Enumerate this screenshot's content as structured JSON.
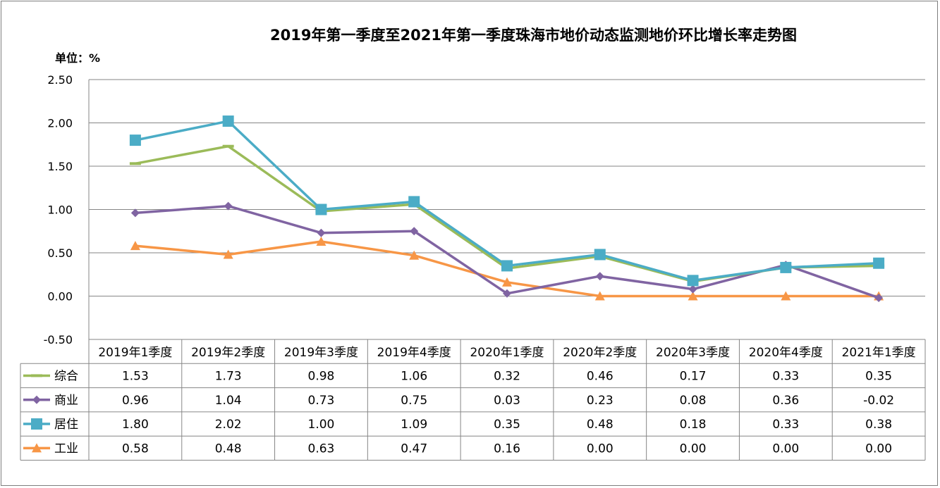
{
  "chart_data": {
    "type": "line",
    "title": "2019年第一季度至2021年第一季度珠海市地价动态监测地价环比增长率走势图",
    "unit_label": "单位：%",
    "ylim": [
      -0.5,
      2.5
    ],
    "yticks": [
      "2.50",
      "2.00",
      "1.50",
      "1.00",
      "0.50",
      "0.00",
      "-0.50"
    ],
    "ytick_values": [
      2.5,
      2.0,
      1.5,
      1.0,
      0.5,
      0.0,
      -0.5
    ],
    "grid": true,
    "legend": "data-table",
    "categories": [
      "2019年1季度",
      "2019年2季度",
      "2019年3季度",
      "2019年4季度",
      "2020年1季度",
      "2020年2季度",
      "2020年3季度",
      "2020年4季度",
      "2021年1季度"
    ],
    "series": [
      {
        "name": "综合",
        "color": "#9bbb59",
        "marker": "dash",
        "values": [
          1.53,
          1.73,
          0.98,
          1.06,
          0.32,
          0.46,
          0.17,
          0.33,
          0.35
        ],
        "labels": [
          "1.53",
          "1.73",
          "0.98",
          "1.06",
          "0.32",
          "0.46",
          "0.17",
          "0.33",
          "0.35"
        ]
      },
      {
        "name": "商业",
        "color": "#8064a2",
        "marker": "diamond",
        "values": [
          0.96,
          1.04,
          0.73,
          0.75,
          0.03,
          0.23,
          0.08,
          0.36,
          -0.02
        ],
        "labels": [
          "0.96",
          "1.04",
          "0.73",
          "0.75",
          "0.03",
          "0.23",
          "0.08",
          "0.36",
          "-0.02"
        ]
      },
      {
        "name": "居住",
        "color": "#4bacc6",
        "marker": "square",
        "values": [
          1.8,
          2.02,
          1.0,
          1.09,
          0.35,
          0.48,
          0.18,
          0.33,
          0.38
        ],
        "labels": [
          "1.80",
          "2.02",
          "1.00",
          "1.09",
          "0.35",
          "0.48",
          "0.18",
          "0.33",
          "0.38"
        ]
      },
      {
        "name": "工业",
        "color": "#f79646",
        "marker": "triangle",
        "values": [
          0.58,
          0.48,
          0.63,
          0.47,
          0.16,
          0.0,
          0.0,
          0.0,
          0.0
        ],
        "labels": [
          "0.58",
          "0.48",
          "0.63",
          "0.47",
          "0.16",
          "0.00",
          "0.00",
          "0.00",
          "0.00"
        ]
      }
    ]
  }
}
